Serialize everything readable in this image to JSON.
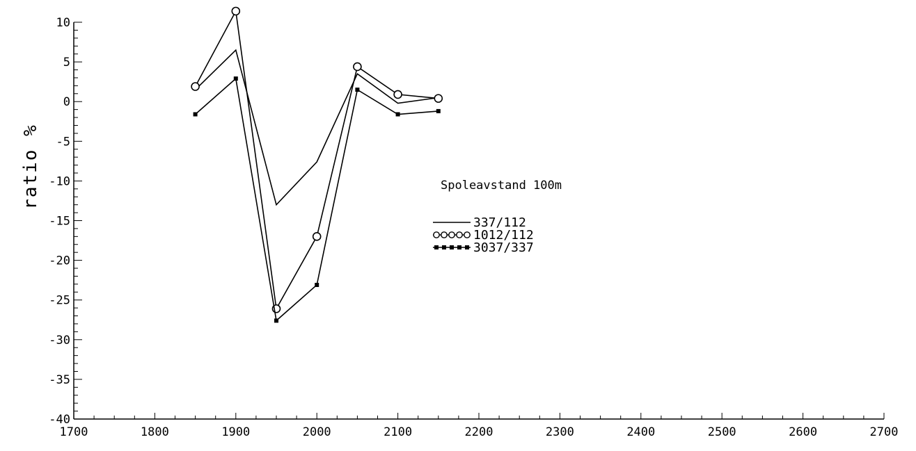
{
  "chart_data": {
    "type": "line",
    "title": "",
    "xlabel": "",
    "ylabel": "ratio %",
    "xlim": [
      1700,
      2700
    ],
    "ylim": [
      -40,
      10
    ],
    "x_ticks": [
      1700,
      1800,
      1900,
      2000,
      2100,
      2200,
      2300,
      2400,
      2500,
      2600,
      2700
    ],
    "y_ticks": [
      10,
      5,
      0,
      -5,
      -10,
      -15,
      -20,
      -25,
      -30,
      -35,
      -40
    ],
    "x_tick_labels": [
      "1700",
      "1800",
      "1900",
      "2000",
      "2100",
      "2200",
      "2300",
      "2400",
      "2500",
      "2600",
      "2700"
    ],
    "y_tick_labels": [
      "10",
      "5",
      "0",
      "-5",
      "-10",
      "-15",
      "-20",
      "-25",
      "-30",
      "-35",
      "-40"
    ],
    "grid": false,
    "legend": {
      "title": "Spoleavstand 100m",
      "placement": "center-right"
    },
    "series": [
      {
        "name": "337/112",
        "marker": "none",
        "color": "#000000",
        "x": [
          1850,
          1900,
          1950,
          2000,
          2050,
          2100,
          2150
        ],
        "values": [
          1.5,
          6.5,
          -13,
          -7.6,
          3.5,
          -0.2,
          0.5
        ]
      },
      {
        "name": "1012/112",
        "marker": "circle",
        "color": "#000000",
        "x": [
          1850,
          1900,
          1950,
          2000,
          2050,
          2100,
          2150
        ],
        "values": [
          1.9,
          11.4,
          -26.1,
          -17,
          4.4,
          0.9,
          0.4
        ]
      },
      {
        "name": "3037/337",
        "marker": "square",
        "color": "#000000",
        "x": [
          1850,
          1900,
          1950,
          2000,
          2050,
          2100,
          2150
        ],
        "values": [
          -1.6,
          2.9,
          -27.6,
          -23.1,
          1.5,
          -1.6,
          -1.2
        ]
      }
    ]
  }
}
